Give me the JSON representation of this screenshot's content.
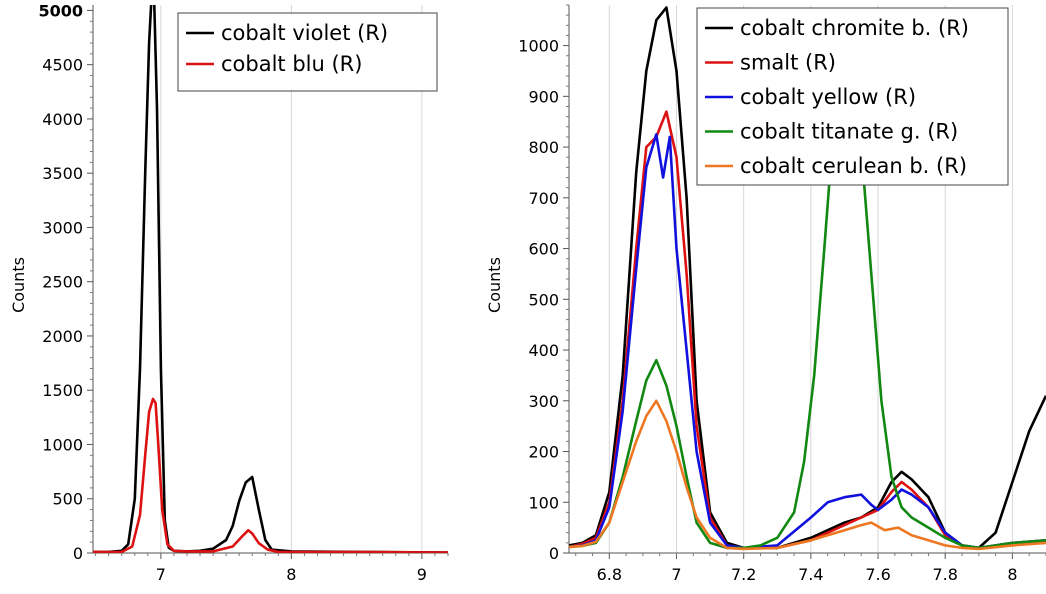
{
  "chart_data": [
    {
      "type": "line",
      "ylabel": "Counts",
      "xlim": [
        6.48,
        9.2
      ],
      "ylim": [
        0,
        5050
      ],
      "xticks": [
        7,
        8,
        9
      ],
      "xtick_labels": [
        "7",
        "8",
        "9"
      ],
      "yticks": [
        0,
        500,
        1000,
        1500,
        2000,
        2500,
        3000,
        3500,
        4000,
        4500,
        5000
      ],
      "ytick_labels": [
        "0",
        "500",
        "1000",
        "1500",
        "2000",
        "2500",
        "3000",
        "3500",
        "4000",
        "4500",
        "5000"
      ],
      "grid": true,
      "legend_position": "top-right",
      "series": [
        {
          "name": "cobalt violet (R)",
          "color": "#000000",
          "x": [
            6.48,
            6.6,
            6.7,
            6.75,
            6.8,
            6.84,
            6.88,
            6.91,
            6.93,
            6.95,
            6.97,
            7.0,
            7.03,
            7.06,
            7.1,
            7.2,
            7.3,
            7.4,
            7.5,
            7.55,
            7.6,
            7.65,
            7.7,
            7.75,
            7.8,
            7.85,
            8.0,
            8.5,
            9.2
          ],
          "y": [
            10,
            10,
            20,
            80,
            500,
            1700,
            3500,
            4700,
            5150,
            5050,
            4100,
            1700,
            300,
            50,
            20,
            15,
            20,
            40,
            120,
            250,
            480,
            650,
            700,
            400,
            120,
            30,
            15,
            10,
            5
          ]
        },
        {
          "name": "cobalt blu (R)",
          "color": "#dd1111",
          "x": [
            6.48,
            6.6,
            6.7,
            6.78,
            6.84,
            6.88,
            6.91,
            6.94,
            6.96,
            6.98,
            7.01,
            7.05,
            7.1,
            7.2,
            7.4,
            7.55,
            7.62,
            7.67,
            7.7,
            7.75,
            7.82,
            7.9,
            8.5,
            9.2
          ],
          "y": [
            10,
            8,
            10,
            60,
            350,
            900,
            1300,
            1420,
            1380,
            1000,
            400,
            80,
            20,
            15,
            15,
            60,
            150,
            210,
            180,
            90,
            30,
            10,
            8,
            5
          ]
        }
      ]
    },
    {
      "type": "line",
      "ylabel": "Counts",
      "xlim": [
        6.68,
        8.1
      ],
      "ylim": [
        0,
        1080
      ],
      "xticks": [
        6.8,
        7,
        7.2,
        7.4,
        7.6,
        7.8,
        8
      ],
      "xtick_labels": [
        "6.8",
        "7",
        "7.2",
        "7.4",
        "7.6",
        "7.8",
        "8"
      ],
      "yticks": [
        0,
        100,
        200,
        300,
        400,
        500,
        600,
        700,
        800,
        900,
        1000
      ],
      "ytick_labels": [
        "0",
        "100",
        "200",
        "300",
        "400",
        "500",
        "600",
        "700",
        "800",
        "900",
        "1000"
      ],
      "grid": true,
      "legend_position": "top-right",
      "series": [
        {
          "name": "cobalt chromite b. (R)",
          "color": "#000000",
          "x": [
            6.68,
            6.72,
            6.76,
            6.8,
            6.84,
            6.88,
            6.91,
            6.94,
            6.97,
            7.0,
            7.03,
            7.06,
            7.1,
            7.15,
            7.2,
            7.3,
            7.4,
            7.5,
            7.55,
            7.6,
            7.64,
            7.67,
            7.7,
            7.75,
            7.8,
            7.85,
            7.9,
            7.95,
            8.0,
            8.05,
            8.1
          ],
          "y": [
            15,
            20,
            35,
            120,
            350,
            750,
            950,
            1050,
            1075,
            950,
            700,
            300,
            80,
            20,
            10,
            10,
            30,
            60,
            70,
            90,
            140,
            160,
            145,
            110,
            40,
            15,
            10,
            40,
            140,
            240,
            310
          ]
        },
        {
          "name": "smalt (R)",
          "color": "#dd1111",
          "x": [
            6.68,
            6.72,
            6.76,
            6.8,
            6.84,
            6.88,
            6.91,
            6.94,
            6.97,
            7.0,
            7.03,
            7.06,
            7.1,
            7.15,
            7.2,
            7.3,
            7.4,
            7.5,
            7.55,
            7.6,
            7.64,
            7.67,
            7.7,
            7.75,
            7.8,
            7.85,
            7.9,
            8.0,
            8.1
          ],
          "y": [
            12,
            18,
            30,
            100,
            300,
            600,
            800,
            820,
            870,
            780,
            550,
            250,
            70,
            15,
            10,
            10,
            25,
            55,
            70,
            85,
            120,
            140,
            125,
            90,
            35,
            15,
            10,
            20,
            25
          ]
        },
        {
          "name": "cobalt yellow (R)",
          "color": "#1111dd",
          "x": [
            6.68,
            6.72,
            6.76,
            6.8,
            6.84,
            6.88,
            6.91,
            6.94,
            6.96,
            6.98,
            7.0,
            7.03,
            7.06,
            7.1,
            7.15,
            7.2,
            7.3,
            7.4,
            7.45,
            7.5,
            7.55,
            7.58,
            7.6,
            7.64,
            7.67,
            7.7,
            7.75,
            7.8,
            7.85,
            7.9,
            8.0,
            8.1
          ],
          "y": [
            12,
            15,
            25,
            90,
            280,
            560,
            760,
            825,
            740,
            820,
            600,
            400,
            200,
            60,
            15,
            10,
            15,
            70,
            100,
            110,
            115,
            95,
            85,
            105,
            125,
            115,
            90,
            40,
            15,
            10,
            20,
            25
          ]
        },
        {
          "name": "cobalt titanate g. (R)",
          "color": "#118811",
          "x": [
            6.68,
            6.72,
            6.76,
            6.8,
            6.84,
            6.88,
            6.91,
            6.94,
            6.97,
            7.0,
            7.03,
            7.06,
            7.1,
            7.15,
            7.2,
            7.25,
            7.3,
            7.35,
            7.38,
            7.41,
            7.44,
            7.47,
            7.5,
            7.52,
            7.55,
            7.58,
            7.61,
            7.64,
            7.67,
            7.7,
            7.75,
            7.8,
            7.85,
            7.9,
            8.0,
            8.1
          ],
          "y": [
            12,
            14,
            20,
            60,
            150,
            260,
            340,
            380,
            330,
            250,
            150,
            60,
            20,
            10,
            10,
            15,
            30,
            80,
            180,
            350,
            600,
            860,
            980,
            960,
            800,
            550,
            300,
            150,
            90,
            70,
            50,
            30,
            15,
            10,
            20,
            25
          ]
        },
        {
          "name": "cobalt cerulean b. (R)",
          "color": "#ee7722",
          "x": [
            6.68,
            6.72,
            6.76,
            6.8,
            6.84,
            6.88,
            6.91,
            6.94,
            6.97,
            7.0,
            7.03,
            7.06,
            7.1,
            7.15,
            7.2,
            7.3,
            7.4,
            7.5,
            7.55,
            7.58,
            7.62,
            7.66,
            7.7,
            7.75,
            7.8,
            7.85,
            7.9,
            8.0,
            8.1
          ],
          "y": [
            12,
            14,
            22,
            60,
            140,
            220,
            270,
            300,
            260,
            200,
            130,
            70,
            30,
            10,
            8,
            10,
            25,
            45,
            55,
            60,
            45,
            50,
            35,
            25,
            15,
            10,
            8,
            15,
            20
          ]
        }
      ]
    }
  ]
}
